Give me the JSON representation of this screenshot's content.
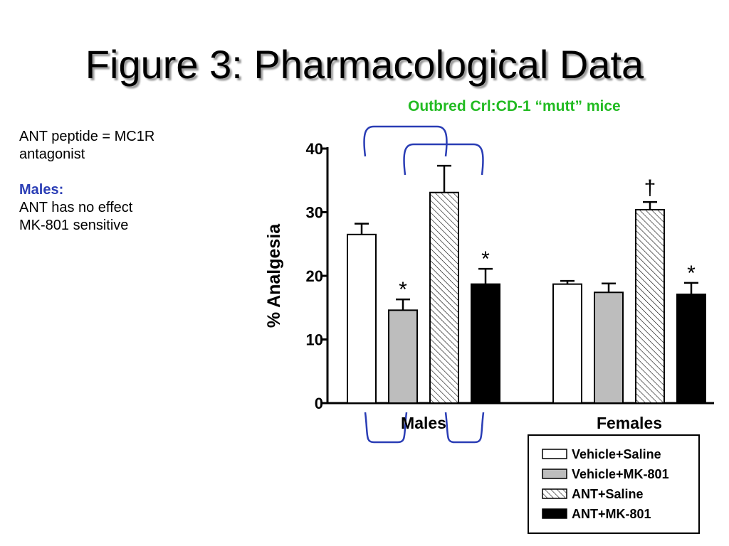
{
  "slide": {
    "title": "Figure 3: Pharmacological Data",
    "subtitle": "Outbred Crl:CD-1 “mutt” mice",
    "note_line1": "ANT peptide = MC1R",
    "note_line2": "antagonist",
    "males_heading": "Males:",
    "males_point1": "ANT has no effect",
    "males_point2": "MK-801 sensitive"
  },
  "colors": {
    "bracket": "#2a3db5",
    "subtitle": "#22bb22",
    "males_heading": "#2a3db5"
  },
  "chart_data": {
    "type": "bar",
    "ylabel": "% Analgesia",
    "ylim": [
      0,
      40
    ],
    "yticks": [
      "0",
      "10",
      "20",
      "30",
      "40"
    ],
    "groups": [
      "Males",
      "Females"
    ],
    "series": [
      {
        "name": "Vehicle+Saline",
        "fill": "white",
        "values": [
          26.5,
          18.7
        ],
        "errors": [
          1.7,
          0.5
        ],
        "marks": [
          "",
          ""
        ]
      },
      {
        "name": "Vehicle+MK-801",
        "fill": "gray",
        "values": [
          14.6,
          17.4
        ],
        "errors": [
          1.7,
          1.4
        ],
        "marks": [
          "*",
          ""
        ]
      },
      {
        "name": "ANT+Saline",
        "fill": "hatch",
        "values": [
          33.1,
          30.4
        ],
        "errors": [
          4.2,
          1.2
        ],
        "marks": [
          "",
          "†"
        ]
      },
      {
        "name": "ANT+MK-801",
        "fill": "black",
        "values": [
          18.7,
          17.1
        ],
        "errors": [
          2.4,
          1.8
        ],
        "marks": [
          "*",
          "*"
        ]
      }
    ],
    "grid": false,
    "legend_position": "bottom-right"
  }
}
